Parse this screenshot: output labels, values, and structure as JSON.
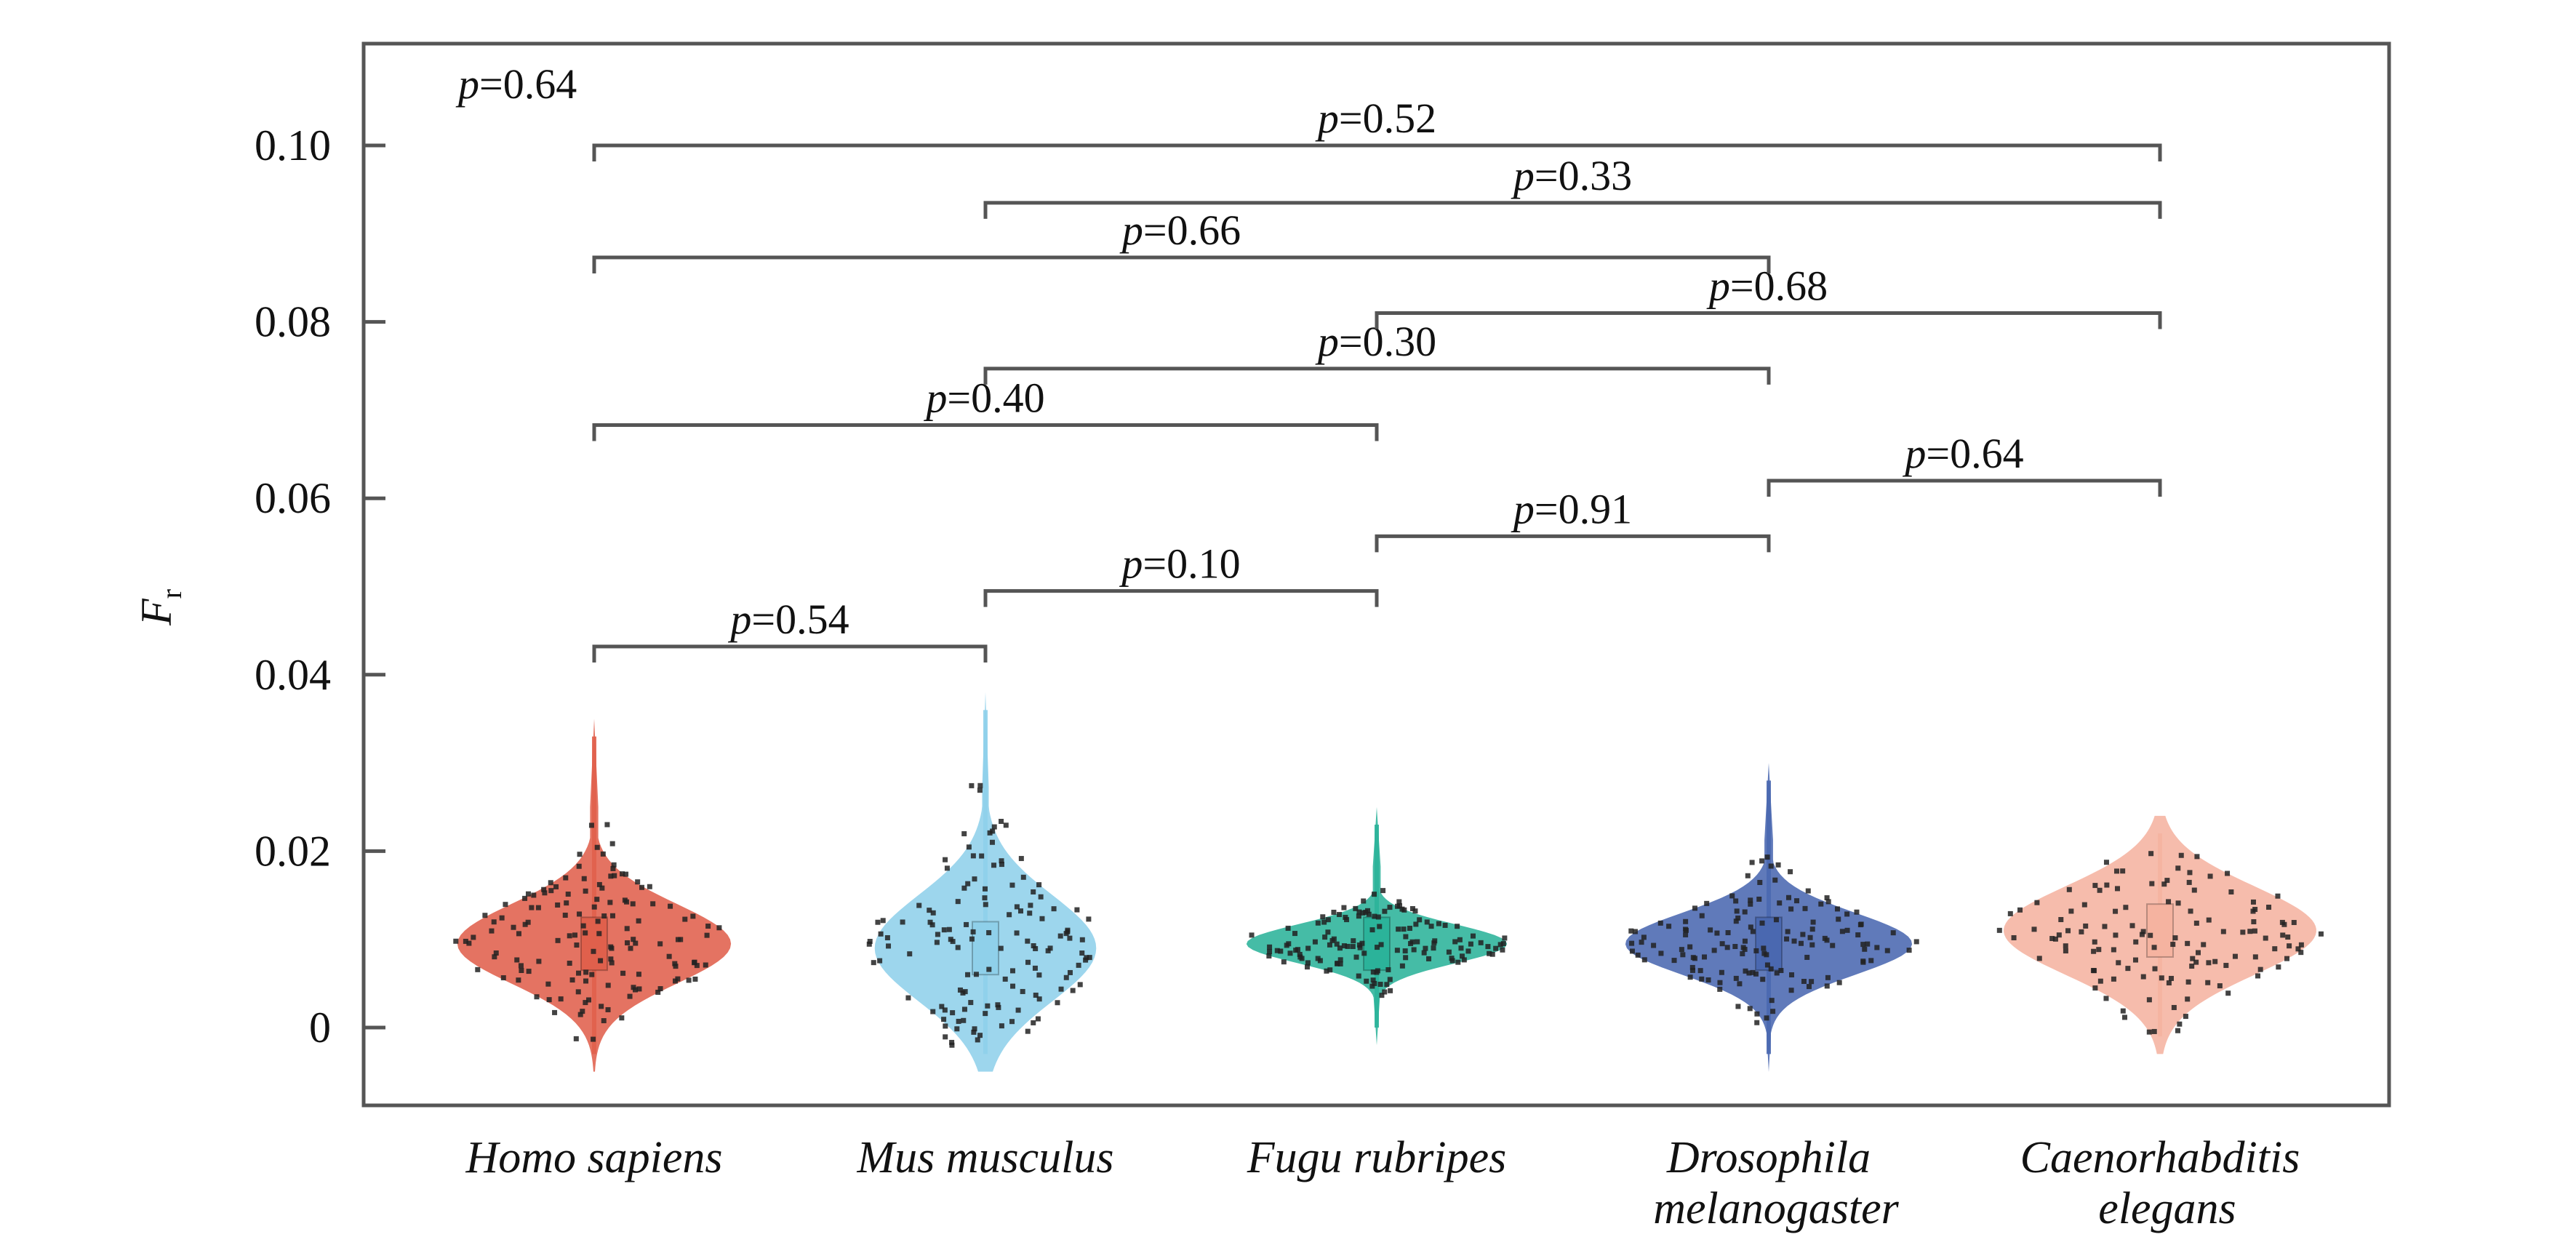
{
  "chart_data": {
    "type": "violin",
    "ylabel": "F",
    "ylabel_subscript": "r",
    "ylim": [
      -0.008,
      0.112
    ],
    "yticks": [
      {
        "value": 0,
        "label": "0"
      },
      {
        "value": 0.02,
        "label": "0.02"
      },
      {
        "value": 0.04,
        "label": "0.04"
      },
      {
        "value": 0.06,
        "label": "0.06"
      },
      {
        "value": 0.08,
        "label": "0.08"
      },
      {
        "value": 0.1,
        "label": "0.10"
      }
    ],
    "grid": false,
    "categories": [
      {
        "lines": [
          "Homo sapiens"
        ],
        "color": "#e0604c",
        "median": 0.0095,
        "min": -0.005,
        "max": 0.035,
        "width_peak": 0.0105,
        "spread": 0.0045
      },
      {
        "lines": [
          "Mus musculus"
        ],
        "color": "#8fd0ea",
        "median": 0.009,
        "min": -0.005,
        "max": 0.038,
        "width_peak": 0.0085,
        "spread": 0.006
      },
      {
        "lines": [
          "Fugu rubripes"
        ],
        "color": "#2bb39a",
        "median": 0.0095,
        "min": -0.002,
        "max": 0.025,
        "width_peak": 0.01,
        "spread": 0.0022
      },
      {
        "lines": [
          "Drosophila",
          "melanogaster"
        ],
        "color": "#4a68b0",
        "median": 0.0095,
        "min": -0.005,
        "max": 0.03,
        "width_peak": 0.011,
        "spread": 0.0035
      },
      {
        "lines": [
          "Caenorhabditis",
          "elegans"
        ],
        "color": "#f5b3a0",
        "median": 0.011,
        "min": -0.003,
        "max": 0.024,
        "width_peak": 0.012,
        "spread": 0.005
      }
    ],
    "comparisons": [
      {
        "from": 0,
        "to": 1,
        "y": 0.0432,
        "p_label": "p",
        "p_value": "=0.54"
      },
      {
        "from": 1,
        "to": 2,
        "y": 0.0495,
        "p_label": "p",
        "p_value": "=0.10"
      },
      {
        "from": 2,
        "to": 3,
        "y": 0.0557,
        "p_label": "p",
        "p_value": "=0.91"
      },
      {
        "from": 3,
        "to": 4,
        "y": 0.062,
        "p_label": "p",
        "p_value": "=0.64"
      },
      {
        "from": 0,
        "to": 2,
        "y": 0.0683,
        "p_label": "p",
        "p_value": "=0.40"
      },
      {
        "from": 1,
        "to": 3,
        "y": 0.0747,
        "p_label": "p",
        "p_value": "=0.30"
      },
      {
        "from": 2,
        "to": 4,
        "y": 0.081,
        "p_label": "p",
        "p_value": "=0.68"
      },
      {
        "from": 0,
        "to": 3,
        "y": 0.0873,
        "p_label": "p",
        "p_value": "=0.66"
      },
      {
        "from": 1,
        "to": 4,
        "y": 0.0935,
        "p_label": "p",
        "p_value": "=0.33"
      },
      {
        "from": 0,
        "to": 4,
        "y": 0.1,
        "p_label": "p",
        "p_value": "=0.52"
      }
    ],
    "corner_annotation": {
      "p_label": "p",
      "p_value": "=0.64"
    }
  }
}
